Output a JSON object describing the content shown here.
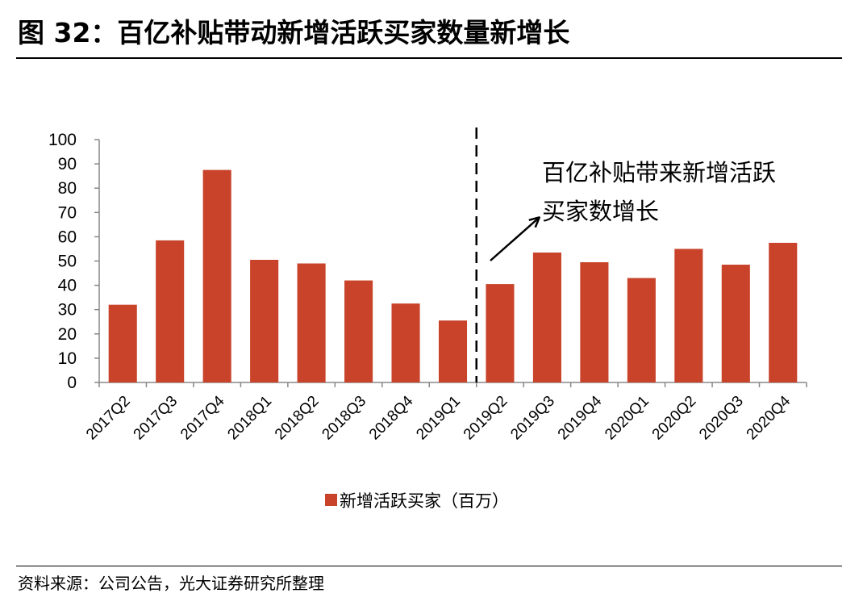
{
  "header": {
    "title": "图 32：百亿补贴带动新增活跃买家数量新增长"
  },
  "footer": {
    "source": "资料来源：公司公告，光大证券研究所整理"
  },
  "chart_data": {
    "type": "bar",
    "categories": [
      "2017Q2",
      "2017Q3",
      "2017Q4",
      "2018Q1",
      "2018Q2",
      "2018Q3",
      "2018Q4",
      "2019Q1",
      "2019Q2",
      "2019Q3",
      "2019Q4",
      "2020Q1",
      "2020Q2",
      "2020Q3",
      "2020Q4"
    ],
    "series": [
      {
        "name": "新增活跃买家（百万）",
        "values": [
          32,
          58.5,
          87.5,
          50.5,
          49,
          42,
          32.5,
          25.5,
          40.5,
          53.5,
          49.5,
          43,
          55,
          48.5,
          57.5
        ],
        "color": "#c8432a"
      }
    ],
    "ylim": [
      0,
      100
    ],
    "yticks": [
      0,
      10,
      20,
      30,
      40,
      50,
      60,
      70,
      80,
      90,
      100
    ],
    "grid": false,
    "legend": "bottom-center",
    "annotation": {
      "lines": [
        "百亿补贴带来新增活跃",
        "买家数增长"
      ],
      "divider_between": [
        "2019Q1",
        "2019Q2"
      ]
    }
  }
}
